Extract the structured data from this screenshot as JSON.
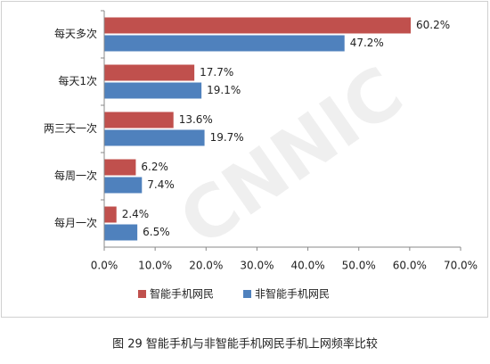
{
  "chart_data": {
    "type": "hbar",
    "caption": "图 29 智能手机与非智能手机网民手机上网频率比较",
    "watermark": "CNNIC",
    "categories": [
      "每天多次",
      "每天1次",
      "两三天一次",
      "每周一次",
      "每月一次"
    ],
    "series": [
      {
        "name": "智能手机网民",
        "color": "#c0504d",
        "values": [
          60.2,
          17.7,
          13.6,
          6.2,
          2.4
        ],
        "value_labels": [
          "60.2%",
          "17.7%",
          "13.6%",
          "6.2%",
          "2.4%"
        ]
      },
      {
        "name": "非智能手机网民",
        "color": "#4f81bd",
        "values": [
          47.2,
          19.1,
          19.7,
          7.4,
          6.5
        ],
        "value_labels": [
          "47.2%",
          "19.1%",
          "19.7%",
          "7.4%",
          "6.5%"
        ]
      }
    ],
    "xlim": [
      0,
      70
    ],
    "xticks": [
      {
        "value": 0,
        "label": "0.0%"
      },
      {
        "value": 10,
        "label": "10.0%"
      },
      {
        "value": 20,
        "label": "20.0%"
      },
      {
        "value": 30,
        "label": "30.0%"
      },
      {
        "value": 40,
        "label": "40.0%"
      },
      {
        "value": 50,
        "label": "50.0%"
      },
      {
        "value": 60,
        "label": "60.0%"
      },
      {
        "value": 70,
        "label": "70.0%"
      }
    ],
    "legend": "bottom"
  }
}
